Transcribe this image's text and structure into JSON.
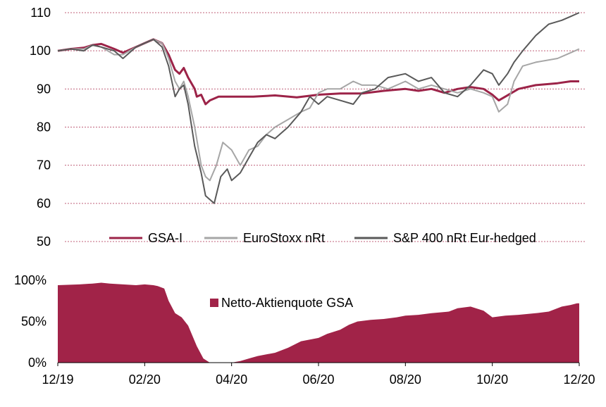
{
  "colors": {
    "gsa": "#9c2348",
    "eurostoxx": "#a6a6a6",
    "sp400": "#595959",
    "quota": "#a12348",
    "grid": "#c0607a"
  },
  "chart_data": [
    {
      "type": "line",
      "ylim": [
        50,
        110
      ],
      "yticks": [
        50,
        60,
        70,
        80,
        90,
        100,
        110
      ],
      "ytick_labels": [
        "50",
        "60",
        "70",
        "80",
        "90",
        "100",
        "110"
      ],
      "grid": true,
      "xlim": [
        0,
        12
      ],
      "x_note": "months since 12/19",
      "legend": {
        "position": "bottom",
        "labels": [
          "GSA-I",
          "EuroStoxx nRt",
          "S&P 400 nRt Eur-hedged"
        ]
      },
      "series": [
        {
          "name": "GSA-I",
          "color_key": "gsa",
          "points": [
            [
              0,
              100
            ],
            [
              0.3,
              100.5
            ],
            [
              0.6,
              100.8
            ],
            [
              0.8,
              101.5
            ],
            [
              1.0,
              101.8
            ],
            [
              1.3,
              100.5
            ],
            [
              1.5,
              99.5
            ],
            [
              1.8,
              101
            ],
            [
              2.0,
              102
            ],
            [
              2.2,
              103
            ],
            [
              2.4,
              102
            ],
            [
              2.55,
              99
            ],
            [
              2.7,
              95
            ],
            [
              2.8,
              94
            ],
            [
              2.9,
              95.5
            ],
            [
              3.0,
              93
            ],
            [
              3.15,
              90
            ],
            [
              3.2,
              88
            ],
            [
              3.3,
              88.5
            ],
            [
              3.4,
              86
            ],
            [
              3.5,
              87
            ],
            [
              3.7,
              88
            ],
            [
              3.9,
              88
            ],
            [
              4.5,
              88
            ],
            [
              5.0,
              88.3
            ],
            [
              5.5,
              87.8
            ],
            [
              6.0,
              88.5
            ],
            [
              6.5,
              88.8
            ],
            [
              7.0,
              88.8
            ],
            [
              7.5,
              89.5
            ],
            [
              8.0,
              90
            ],
            [
              8.3,
              89.5
            ],
            [
              8.6,
              90
            ],
            [
              8.9,
              89
            ],
            [
              9.2,
              90
            ],
            [
              9.5,
              90.5
            ],
            [
              9.8,
              90
            ],
            [
              10.0,
              88.5
            ],
            [
              10.15,
              87
            ],
            [
              10.3,
              88
            ],
            [
              10.6,
              90
            ],
            [
              11.0,
              91
            ],
            [
              11.5,
              91.5
            ],
            [
              11.8,
              92
            ],
            [
              12.0,
              92
            ]
          ]
        },
        {
          "name": "EuroStoxx nRt",
          "color_key": "eurostoxx",
          "points": [
            [
              0,
              100
            ],
            [
              0.3,
              100.5
            ],
            [
              0.6,
              100.5
            ],
            [
              0.8,
              101.5
            ],
            [
              1.0,
              101
            ],
            [
              1.3,
              99
            ],
            [
              1.5,
              99
            ],
            [
              1.8,
              101
            ],
            [
              2.0,
              102
            ],
            [
              2.2,
              103
            ],
            [
              2.4,
              102
            ],
            [
              2.55,
              98
            ],
            [
              2.7,
              92
            ],
            [
              2.8,
              90
            ],
            [
              2.9,
              92
            ],
            [
              3.0,
              88
            ],
            [
              3.15,
              80
            ],
            [
              3.3,
              70
            ],
            [
              3.4,
              67
            ],
            [
              3.5,
              66
            ],
            [
              3.65,
              70
            ],
            [
              3.8,
              76
            ],
            [
              4.0,
              74
            ],
            [
              4.2,
              70
            ],
            [
              4.4,
              74
            ],
            [
              4.6,
              75
            ],
            [
              4.8,
              78
            ],
            [
              5.0,
              80
            ],
            [
              5.3,
              82
            ],
            [
              5.6,
              84
            ],
            [
              5.8,
              85
            ],
            [
              6.0,
              89
            ],
            [
              6.2,
              90
            ],
            [
              6.5,
              90
            ],
            [
              6.8,
              92
            ],
            [
              7.0,
              91
            ],
            [
              7.3,
              91
            ],
            [
              7.6,
              90
            ],
            [
              8.0,
              92
            ],
            [
              8.3,
              90
            ],
            [
              8.6,
              91
            ],
            [
              8.9,
              90
            ],
            [
              9.2,
              89
            ],
            [
              9.5,
              90
            ],
            [
              9.8,
              89
            ],
            [
              10.0,
              88
            ],
            [
              10.15,
              84
            ],
            [
              10.35,
              86
            ],
            [
              10.5,
              92
            ],
            [
              10.7,
              96
            ],
            [
              11.0,
              97
            ],
            [
              11.5,
              98
            ],
            [
              11.8,
              99.5
            ],
            [
              12.0,
              100.5
            ]
          ]
        },
        {
          "name": "S&P 400 nRt Eur-hedged",
          "color_key": "sp400",
          "points": [
            [
              0,
              100
            ],
            [
              0.3,
              100.5
            ],
            [
              0.6,
              100
            ],
            [
              0.8,
              101.5
            ],
            [
              1.0,
              101
            ],
            [
              1.3,
              100
            ],
            [
              1.5,
              98
            ],
            [
              1.8,
              101
            ],
            [
              2.0,
              102
            ],
            [
              2.2,
              103
            ],
            [
              2.4,
              101
            ],
            [
              2.55,
              96
            ],
            [
              2.7,
              88
            ],
            [
              2.8,
              90
            ],
            [
              2.9,
              91
            ],
            [
              3.0,
              86
            ],
            [
              3.15,
              75
            ],
            [
              3.3,
              68
            ],
            [
              3.4,
              62
            ],
            [
              3.5,
              61
            ],
            [
              3.6,
              60
            ],
            [
              3.75,
              67
            ],
            [
              3.9,
              69
            ],
            [
              4.0,
              66
            ],
            [
              4.2,
              68
            ],
            [
              4.4,
              72
            ],
            [
              4.6,
              76
            ],
            [
              4.8,
              78
            ],
            [
              5.0,
              77
            ],
            [
              5.3,
              80
            ],
            [
              5.6,
              84
            ],
            [
              5.8,
              88
            ],
            [
              6.0,
              86
            ],
            [
              6.2,
              88
            ],
            [
              6.5,
              87
            ],
            [
              6.8,
              86
            ],
            [
              7.0,
              89
            ],
            [
              7.3,
              90
            ],
            [
              7.6,
              93
            ],
            [
              8.0,
              94
            ],
            [
              8.3,
              92
            ],
            [
              8.6,
              93
            ],
            [
              8.9,
              89
            ],
            [
              9.2,
              88
            ],
            [
              9.5,
              91
            ],
            [
              9.8,
              95
            ],
            [
              10.0,
              94
            ],
            [
              10.15,
              91
            ],
            [
              10.35,
              94
            ],
            [
              10.5,
              97
            ],
            [
              10.7,
              100
            ],
            [
              11.0,
              104
            ],
            [
              11.3,
              107
            ],
            [
              11.6,
              108
            ],
            [
              11.8,
              109
            ],
            [
              12.0,
              110
            ]
          ]
        }
      ]
    },
    {
      "type": "area",
      "ylim": [
        0,
        100
      ],
      "yticks": [
        0,
        50,
        100
      ],
      "ytick_labels": [
        "0%",
        "50%",
        "100%"
      ],
      "legend": {
        "position": "top",
        "labels": [
          "Netto-Aktienquote GSA"
        ]
      },
      "x_tick_labels": [
        "12/19",
        "02/20",
        "04/20",
        "06/20",
        "08/20",
        "10/20",
        "12/20"
      ],
      "series": [
        {
          "name": "Netto-Aktienquote GSA",
          "color_key": "quota",
          "points": [
            [
              0,
              94
            ],
            [
              0.5,
              95
            ],
            [
              0.8,
              96
            ],
            [
              1.0,
              97
            ],
            [
              1.2,
              96
            ],
            [
              1.5,
              95
            ],
            [
              1.8,
              94
            ],
            [
              2.0,
              95
            ],
            [
              2.2,
              94
            ],
            [
              2.3,
              93
            ],
            [
              2.45,
              90
            ],
            [
              2.55,
              75
            ],
            [
              2.7,
              60
            ],
            [
              2.85,
              55
            ],
            [
              3.0,
              45
            ],
            [
              3.2,
              20
            ],
            [
              3.35,
              5
            ],
            [
              3.5,
              0
            ],
            [
              4.0,
              0
            ],
            [
              4.2,
              2
            ],
            [
              4.4,
              5
            ],
            [
              4.6,
              8
            ],
            [
              4.8,
              10
            ],
            [
              5.0,
              12
            ],
            [
              5.3,
              18
            ],
            [
              5.6,
              26
            ],
            [
              5.8,
              28
            ],
            [
              6.0,
              30
            ],
            [
              6.2,
              35
            ],
            [
              6.5,
              40
            ],
            [
              6.7,
              46
            ],
            [
              6.9,
              50
            ],
            [
              7.2,
              52
            ],
            [
              7.5,
              53
            ],
            [
              7.8,
              55
            ],
            [
              8.0,
              57
            ],
            [
              8.3,
              58
            ],
            [
              8.6,
              60
            ],
            [
              9.0,
              62
            ],
            [
              9.2,
              66
            ],
            [
              9.5,
              68
            ],
            [
              9.8,
              63
            ],
            [
              10.0,
              55
            ],
            [
              10.3,
              57
            ],
            [
              10.6,
              58
            ],
            [
              11.0,
              60
            ],
            [
              11.3,
              62
            ],
            [
              11.6,
              68
            ],
            [
              11.8,
              70
            ],
            [
              11.95,
              72
            ],
            [
              12.0,
              72
            ]
          ]
        }
      ]
    }
  ]
}
